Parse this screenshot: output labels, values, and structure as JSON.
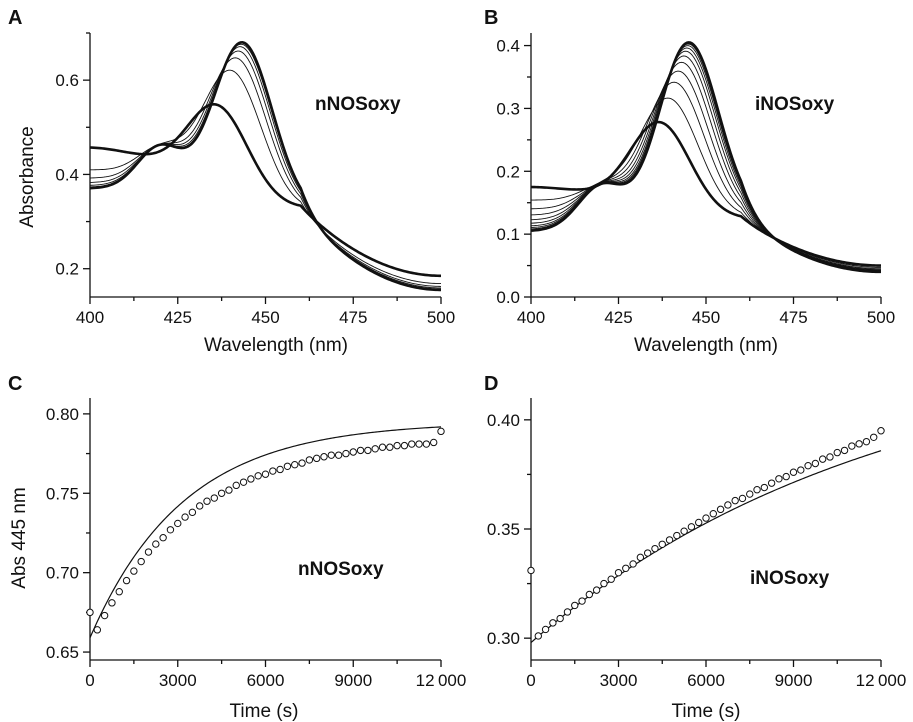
{
  "chart_data": [
    {
      "panel": "A",
      "type": "line",
      "annotation": "nNOSoxy",
      "xlabel": "Wavelength (nm)",
      "ylabel": "Absorbance",
      "xlim": [
        400,
        500
      ],
      "ylim": [
        0.14,
        0.7
      ],
      "xticks": [
        400,
        425,
        450,
        475,
        500
      ],
      "yticks": [
        0.2,
        0.4,
        0.6
      ],
      "xtick_labels": [
        "400",
        "425",
        "450",
        "475",
        "500"
      ],
      "ytick_labels": [
        "0.2",
        "0.4",
        "0.6"
      ],
      "minor_xticks": true,
      "minor_yticks": true,
      "grid": false,
      "legend": "none",
      "family": {
        "start": {
          "v400": 0.457,
          "peak_wl": 436.5,
          "peak": 0.547,
          "v460": 0.33,
          "v500": 0.185
        },
        "end": {
          "v400": 0.37,
          "shoulder": 0.463,
          "peak_wl": 443.5,
          "peak": 0.68,
          "v460": 0.318,
          "v500": 0.155
        },
        "progress": [
          0,
          0.55,
          0.75,
          0.86,
          0.93,
          0.97,
          0.99,
          1.0
        ],
        "bold_first": true,
        "bold_last": true
      }
    },
    {
      "panel": "B",
      "type": "line",
      "annotation": "iNOSoxy",
      "xlabel": "Wavelength (nm)",
      "ylabel": "",
      "xlim": [
        400,
        500
      ],
      "ylim": [
        0,
        0.42
      ],
      "xticks": [
        400,
        425,
        450,
        475,
        500
      ],
      "yticks": [
        0.0,
        0.1,
        0.2,
        0.3,
        0.4
      ],
      "xtick_labels": [
        "400",
        "425",
        "450",
        "475",
        "500"
      ],
      "ytick_labels": [
        "0.0",
        "0.1",
        "0.2",
        "0.3",
        "0.4"
      ],
      "minor_xticks": true,
      "minor_yticks": true,
      "grid": false,
      "legend": "none",
      "family": {
        "start": {
          "v400": 0.175,
          "peak_wl": 437,
          "peak": 0.278,
          "v460": 0.125,
          "v500": 0.05
        },
        "end": {
          "v400": 0.105,
          "shoulder": 0.18,
          "peak_wl": 445,
          "peak": 0.405,
          "v460": 0.125,
          "v500": 0.04
        },
        "progress": [
          0,
          0.3,
          0.5,
          0.64,
          0.75,
          0.83,
          0.89,
          0.93,
          0.96,
          0.98,
          0.99,
          1.0
        ],
        "bold_first": true,
        "bold_last": true
      }
    },
    {
      "panel": "C",
      "type": "scatter",
      "annotation": "nNOSoxy",
      "xlabel": "Time (s)",
      "ylabel": "Abs 445 nm",
      "xlim": [
        0,
        12000
      ],
      "ylim": [
        0.645,
        0.81
      ],
      "xticks": [
        0,
        3000,
        6000,
        9000,
        12000
      ],
      "yticks": [
        0.65,
        0.7,
        0.75,
        0.8
      ],
      "xtick_labels": [
        "0",
        "3000",
        "6000",
        "9000",
        "12 000"
      ],
      "ytick_labels": [
        "0.65",
        "0.70",
        "0.75",
        "0.80"
      ],
      "minor_xticks": true,
      "minor_yticks": true,
      "grid": false,
      "legend": "none",
      "fit": {
        "model": "single-exponential",
        "y0": 0.659,
        "yinf": 0.795,
        "tau_s": 3200
      },
      "points": {
        "x": [
          0,
          250,
          500,
          750,
          1000,
          1250,
          1500,
          1750,
          2000,
          2250,
          2500,
          2750,
          3000,
          3250,
          3500,
          3750,
          4000,
          4250,
          4500,
          4750,
          5000,
          5250,
          5500,
          5750,
          6000,
          6250,
          6500,
          6750,
          7000,
          7250,
          7500,
          7750,
          8000,
          8250,
          8500,
          8750,
          9000,
          9250,
          9500,
          9750,
          10000,
          10250,
          10500,
          10750,
          11000,
          11250,
          11500,
          11750,
          12000
        ],
        "y": [
          0.675,
          0.664,
          0.673,
          0.681,
          0.688,
          0.695,
          0.701,
          0.707,
          0.713,
          0.718,
          0.722,
          0.727,
          0.731,
          0.735,
          0.738,
          0.742,
          0.745,
          0.747,
          0.75,
          0.752,
          0.755,
          0.757,
          0.759,
          0.761,
          0.762,
          0.764,
          0.765,
          0.767,
          0.768,
          0.769,
          0.771,
          0.772,
          0.773,
          0.774,
          0.774,
          0.775,
          0.776,
          0.777,
          0.777,
          0.778,
          0.779,
          0.779,
          0.78,
          0.78,
          0.781,
          0.781,
          0.781,
          0.782,
          0.789
        ]
      }
    },
    {
      "panel": "D",
      "type": "scatter",
      "annotation": "iNOSoxy",
      "xlabel": "Time (s)",
      "ylabel": "",
      "xlim": [
        0,
        12000
      ],
      "ylim": [
        0.29,
        0.41
      ],
      "xticks": [
        0,
        3000,
        6000,
        9000,
        12000
      ],
      "yticks": [
        0.3,
        0.35,
        0.4
      ],
      "xtick_labels": [
        "0",
        "3000",
        "6000",
        "9000",
        "12 000"
      ],
      "ytick_labels": [
        "0.30",
        "0.35",
        "0.40"
      ],
      "minor_xticks": true,
      "minor_yticks": true,
      "grid": false,
      "legend": "none",
      "fit": {
        "model": "single-exponential",
        "y0": 0.298,
        "yinf": 0.437,
        "tau_s": 12000
      },
      "points": {
        "x": [
          0,
          250,
          500,
          750,
          1000,
          1250,
          1500,
          1750,
          2000,
          2250,
          2500,
          2750,
          3000,
          3250,
          3500,
          3750,
          4000,
          4250,
          4500,
          4750,
          5000,
          5250,
          5500,
          5750,
          6000,
          6250,
          6500,
          6750,
          7000,
          7250,
          7500,
          7750,
          8000,
          8250,
          8500,
          8750,
          9000,
          9250,
          9500,
          9750,
          10000,
          10250,
          10500,
          10750,
          11000,
          11250,
          11500,
          11750,
          12000
        ],
        "y": [
          0.331,
          0.301,
          0.304,
          0.307,
          0.309,
          0.312,
          0.315,
          0.317,
          0.32,
          0.322,
          0.325,
          0.327,
          0.33,
          0.332,
          0.334,
          0.337,
          0.339,
          0.341,
          0.343,
          0.345,
          0.347,
          0.349,
          0.351,
          0.353,
          0.355,
          0.357,
          0.359,
          0.361,
          0.363,
          0.364,
          0.366,
          0.368,
          0.369,
          0.371,
          0.373,
          0.374,
          0.376,
          0.377,
          0.379,
          0.38,
          0.382,
          0.383,
          0.385,
          0.386,
          0.388,
          0.389,
          0.39,
          0.392,
          0.395
        ]
      }
    }
  ]
}
